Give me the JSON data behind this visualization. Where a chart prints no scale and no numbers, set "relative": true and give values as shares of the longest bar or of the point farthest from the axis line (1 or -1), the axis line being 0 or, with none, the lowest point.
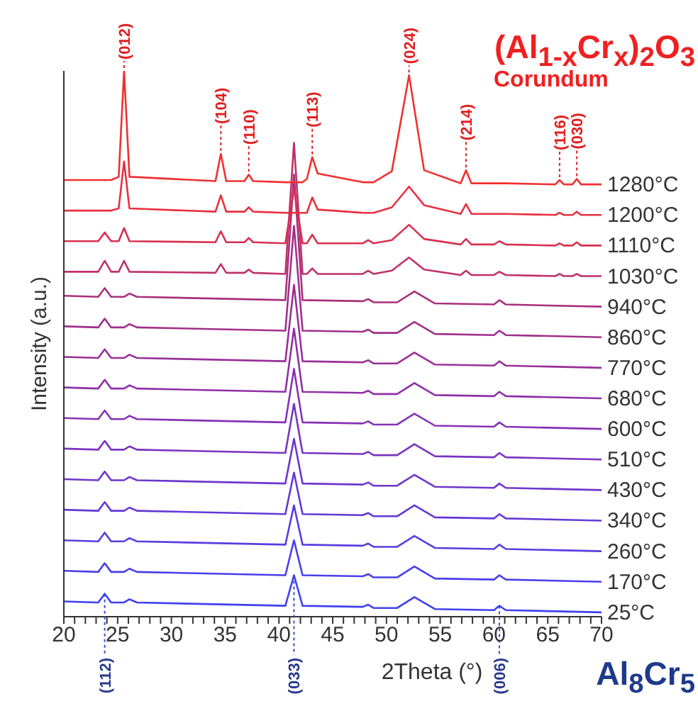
{
  "chart_data": {
    "type": "line",
    "title": "(Al$_{1-x}$Cr$_{x}$)$_{2}$O$_{3}$",
    "subtitle": "Corundum",
    "xlabel": "2Theta (°)",
    "ylabel": "Intensity (a.u.)",
    "relative": true,
    "legend": false,
    "xlim": [
      20,
      70
    ],
    "xticks": [
      20,
      {
        "value": 21,
        "label": null
      },
      {
        "value": 22,
        "label": null
      },
      {
        "value": 23,
        "label": null
      },
      {
        "value": 24,
        "label": null
      },
      25,
      {
        "value": 26,
        "label": null
      },
      {
        "value": 27,
        "label": null
      },
      {
        "value": 28,
        "label": null
      },
      {
        "value": 29,
        "label": null
      },
      30,
      {
        "value": 31,
        "label": null
      },
      {
        "value": 32,
        "label": null
      },
      {
        "value": 33,
        "label": null
      },
      {
        "value": 34,
        "label": null
      },
      35,
      {
        "value": 36,
        "label": null
      },
      {
        "value": 37,
        "label": null
      },
      {
        "value": 38,
        "label": null
      },
      {
        "value": 39,
        "label": null
      },
      40,
      {
        "value": 41,
        "label": null
      },
      {
        "value": 42,
        "label": null
      },
      {
        "value": 43,
        "label": null
      },
      {
        "value": 44,
        "label": null
      },
      45,
      {
        "value": 46,
        "label": null
      },
      {
        "value": 47,
        "label": null
      },
      {
        "value": 48,
        "label": null
      },
      {
        "value": 49,
        "label": null
      },
      50,
      {
        "value": 51,
        "label": null
      },
      {
        "value": 52,
        "label": null
      },
      {
        "value": 53,
        "label": null
      },
      {
        "value": 54,
        "label": null
      },
      55,
      {
        "value": 56,
        "label": null
      },
      {
        "value": 57,
        "label": null
      },
      {
        "value": 58,
        "label": null
      },
      {
        "value": 59,
        "label": null
      },
      60,
      {
        "value": 61,
        "label": null
      },
      {
        "value": 62,
        "label": null
      },
      {
        "value": 63,
        "label": null
      },
      {
        "value": 64,
        "label": null
      },
      65,
      {
        "value": 66,
        "label": null
      },
      {
        "value": 67,
        "label": null
      },
      {
        "value": 68,
        "label": null
      },
      {
        "value": 69,
        "label": null
      },
      70
    ],
    "x": [
      20,
      23.2,
      23.8,
      24.4,
      25.6,
      26.1,
      26.8,
      40.6,
      41.4,
      42.2,
      47.8,
      48.3,
      48.8,
      51,
      52.6,
      54.5,
      60,
      60.5,
      61.1,
      70
    ],
    "series": [
      {
        "name": "25°C",
        "color": "#4040f0",
        "values": [
          0.028,
          0.026,
          0.042,
          0.026,
          0.026,
          0.032,
          0.026,
          0.02,
          0.076,
          0.02,
          0.018,
          0.022,
          0.016,
          0.016,
          0.036,
          0.014,
          0.012,
          0.02,
          0.012,
          0.008
        ]
      },
      {
        "name": "170°C",
        "color": "#4a3eea",
        "values": [
          0.084,
          0.082,
          0.098,
          0.082,
          0.082,
          0.088,
          0.082,
          0.076,
          0.14,
          0.076,
          0.074,
          0.078,
          0.072,
          0.072,
          0.092,
          0.07,
          0.068,
          0.076,
          0.068,
          0.064
        ]
      },
      {
        "name": "260°C",
        "color": "#5a3ce0",
        "values": [
          0.14,
          0.138,
          0.154,
          0.138,
          0.138,
          0.144,
          0.138,
          0.132,
          0.204,
          0.132,
          0.13,
          0.134,
          0.128,
          0.128,
          0.148,
          0.126,
          0.124,
          0.132,
          0.124,
          0.12
        ]
      },
      {
        "name": "340°C",
        "color": "#6438d6",
        "values": [
          0.196,
          0.194,
          0.21,
          0.194,
          0.194,
          0.2,
          0.194,
          0.188,
          0.264,
          0.188,
          0.186,
          0.19,
          0.184,
          0.184,
          0.204,
          0.182,
          0.18,
          0.188,
          0.18,
          0.176
        ]
      },
      {
        "name": "430°C",
        "color": "#6e36cc",
        "values": [
          0.252,
          0.25,
          0.266,
          0.25,
          0.25,
          0.256,
          0.25,
          0.244,
          0.326,
          0.244,
          0.242,
          0.246,
          0.24,
          0.24,
          0.26,
          0.238,
          0.236,
          0.244,
          0.236,
          0.232
        ]
      },
      {
        "name": "510°C",
        "color": "#7a34c0",
        "values": [
          0.308,
          0.306,
          0.322,
          0.306,
          0.306,
          0.312,
          0.306,
          0.3,
          0.39,
          0.3,
          0.298,
          0.302,
          0.296,
          0.296,
          0.316,
          0.294,
          0.292,
          0.3,
          0.292,
          0.288
        ]
      },
      {
        "name": "600°C",
        "color": "#8632b4",
        "values": [
          0.364,
          0.362,
          0.378,
          0.362,
          0.362,
          0.368,
          0.362,
          0.356,
          0.454,
          0.356,
          0.354,
          0.358,
          0.352,
          0.352,
          0.372,
          0.35,
          0.348,
          0.356,
          0.348,
          0.344
        ]
      },
      {
        "name": "680°C",
        "color": "#8e30a6",
        "values": [
          0.42,
          0.418,
          0.434,
          0.418,
          0.418,
          0.424,
          0.418,
          0.412,
          0.528,
          0.412,
          0.41,
          0.414,
          0.408,
          0.408,
          0.428,
          0.406,
          0.404,
          0.412,
          0.404,
          0.4
        ]
      },
      {
        "name": "770°C",
        "color": "#983098",
        "values": [
          0.476,
          0.474,
          0.49,
          0.474,
          0.474,
          0.48,
          0.474,
          0.468,
          0.608,
          0.468,
          0.466,
          0.47,
          0.464,
          0.464,
          0.484,
          0.462,
          0.46,
          0.468,
          0.46,
          0.456
        ]
      },
      {
        "name": "860°C",
        "color": "#a0308a",
        "values": [
          0.532,
          0.53,
          0.546,
          0.53,
          0.53,
          0.536,
          0.53,
          0.524,
          0.716,
          0.524,
          0.522,
          0.526,
          0.52,
          0.52,
          0.54,
          0.518,
          0.516,
          0.524,
          0.516,
          0.512
        ]
      },
      {
        "name": "940°C",
        "color": "#a8307c",
        "values": [
          0.588,
          0.586,
          0.602,
          0.586,
          0.586,
          0.592,
          0.586,
          0.58,
          0.81,
          0.58,
          0.578,
          0.582,
          0.576,
          0.576,
          0.596,
          0.574,
          0.572,
          0.58,
          0.572,
          0.568
        ]
      },
      {
        "name": "1030°C",
        "color": "#c0306a",
        "x": [
          20,
          23.2,
          23.8,
          24.4,
          25.1,
          25.6,
          26.1,
          34.1,
          34.6,
          35.1,
          36.8,
          37.2,
          37.6,
          40.6,
          41.4,
          42.2,
          42.6,
          43.1,
          43.6,
          47.8,
          48.3,
          48.8,
          50.5,
          52.1,
          53.5,
          56.9,
          57.4,
          57.9,
          60.0,
          60.5,
          61.1,
          65.7,
          66.1,
          66.5,
          67.3,
          67.7,
          68.1,
          70
        ],
        "values": [
          0.632,
          0.632,
          0.652,
          0.632,
          0.632,
          0.652,
          0.632,
          0.63,
          0.646,
          0.63,
          0.63,
          0.636,
          0.63,
          0.628,
          0.868,
          0.628,
          0.628,
          0.638,
          0.628,
          0.628,
          0.634,
          0.628,
          0.634,
          0.658,
          0.636,
          0.626,
          0.634,
          0.626,
          0.626,
          0.632,
          0.626,
          0.624,
          0.628,
          0.624,
          0.624,
          0.628,
          0.624,
          0.624
        ]
      },
      {
        "name": "1110°C",
        "color": "#d83050",
        "x": [
          20,
          23.2,
          23.8,
          24.4,
          25.1,
          25.6,
          26.1,
          34.1,
          34.6,
          35.1,
          36.8,
          37.2,
          37.6,
          40.6,
          41.4,
          42.2,
          42.6,
          43.1,
          43.6,
          47.8,
          48.3,
          48.8,
          50.5,
          52.1,
          53.5,
          56.9,
          57.4,
          57.9,
          60.0,
          60.5,
          61.1,
          65.7,
          66.1,
          66.5,
          67.3,
          67.7,
          68.1,
          70
        ],
        "values": [
          0.688,
          0.688,
          0.704,
          0.688,
          0.688,
          0.712,
          0.688,
          0.686,
          0.706,
          0.686,
          0.686,
          0.694,
          0.686,
          0.684,
          0.784,
          0.684,
          0.684,
          0.7,
          0.684,
          0.684,
          0.69,
          0.684,
          0.69,
          0.718,
          0.692,
          0.682,
          0.692,
          0.682,
          0.682,
          0.688,
          0.682,
          0.68,
          0.684,
          0.68,
          0.68,
          0.686,
          0.68,
          0.68
        ]
      },
      {
        "name": "1200°C",
        "color": "#e83040",
        "x": [
          20,
          23.2,
          23.8,
          24.4,
          25.1,
          25.6,
          26.1,
          34.1,
          34.6,
          35.1,
          36.8,
          37.2,
          37.6,
          40.6,
          41.4,
          42.2,
          42.6,
          43.1,
          43.6,
          47.8,
          48.3,
          48.8,
          50.5,
          52.1,
          53.5,
          56.9,
          57.4,
          57.9,
          60.0,
          60.5,
          61.1,
          65.7,
          66.1,
          66.5,
          67.3,
          67.7,
          68.1,
          70
        ],
        "values": [
          0.744,
          0.744,
          0.744,
          0.744,
          0.748,
          0.834,
          0.748,
          0.742,
          0.772,
          0.742,
          0.742,
          0.75,
          0.742,
          0.74,
          0.74,
          0.74,
          0.74,
          0.768,
          0.746,
          0.74,
          0.74,
          0.74,
          0.75,
          0.788,
          0.754,
          0.738,
          0.756,
          0.738,
          0.738,
          0.738,
          0.738,
          0.736,
          0.74,
          0.736,
          0.736,
          0.742,
          0.736,
          0.736
        ]
      },
      {
        "name": "1280°C",
        "color": "#f03030",
        "x": [
          20,
          23.2,
          23.8,
          24.4,
          25.1,
          25.6,
          26.1,
          34.1,
          34.6,
          35.1,
          36.8,
          37.2,
          37.6,
          40.6,
          41.4,
          42.2,
          42.6,
          43.1,
          43.6,
          47.8,
          48.3,
          48.8,
          50.5,
          52.1,
          53.5,
          56.9,
          57.4,
          57.9,
          60.0,
          60.5,
          61.1,
          65.7,
          66.1,
          66.5,
          67.3,
          67.7,
          68.1,
          70
        ],
        "values": [
          0.8,
          0.8,
          0.8,
          0.8,
          0.806,
          1,
          0.806,
          0.798,
          0.848,
          0.798,
          0.798,
          0.81,
          0.798,
          0.796,
          0.796,
          0.796,
          0.802,
          0.842,
          0.812,
          0.796,
          0.796,
          0.796,
          0.816,
          0.992,
          0.818,
          0.794,
          0.818,
          0.794,
          0.794,
          0.794,
          0.794,
          0.792,
          0.8,
          0.792,
          0.792,
          0.802,
          0.792,
          0.792
        ]
      }
    ],
    "annotations": [
      {
        "text": "(012)",
        "x": 25.6,
        "y": 1
      },
      {
        "text": "(104)",
        "x": 34.6,
        "y": 0.848
      },
      {
        "text": "(110)",
        "x": 37.2,
        "y": 0.81
      },
      {
        "text": "(113)",
        "x": 43.1,
        "y": 0.842
      },
      {
        "text": "(024)",
        "x": 52.1,
        "y": 0.992
      },
      {
        "text": "(214)",
        "x": 57.4,
        "y": 0.818
      },
      {
        "text": "(116)",
        "x": 66.1,
        "y": 0.8
      },
      {
        "text": "(030)",
        "x": 67.7,
        "y": 0.802
      },
      {
        "text": "(112)",
        "x": 23.8,
        "y": 0.042
      },
      {
        "text": "(033)",
        "x": 41.4,
        "y": 0.076
      },
      {
        "text": "(006)",
        "x": 60.5,
        "y": 0.02
      },
      "Al$_{8}$Cr$_{5}$"
    ]
  }
}
